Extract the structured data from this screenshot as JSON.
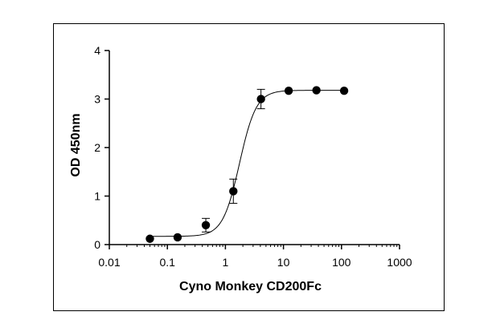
{
  "chart_data": {
    "type": "scatter",
    "title": "",
    "xlabel": "Cyno Monkey CD200Fc",
    "ylabel": "OD 450nm",
    "xscale": "log",
    "xlim": [
      0.01,
      1000
    ],
    "ylim": [
      0,
      4
    ],
    "x_ticks": [
      0.01,
      0.1,
      1,
      10,
      100,
      1000
    ],
    "x_tick_labels": [
      "0.01",
      "0.1",
      "1",
      "10",
      "100",
      "1000"
    ],
    "y_ticks": [
      0,
      1,
      2,
      3,
      4
    ],
    "y_tick_labels": [
      "0",
      "1",
      "2",
      "3",
      "4"
    ],
    "grid": false,
    "legend": "none",
    "series": [
      {
        "x": [
          0.05,
          0.15,
          0.46,
          1.37,
          4.1,
          12.3,
          37,
          111
        ],
        "y": [
          0.12,
          0.15,
          0.4,
          1.1,
          3.0,
          3.17,
          3.18,
          3.17
        ],
        "error": [
          0.0,
          0.0,
          0.14,
          0.25,
          0.2,
          0.0,
          0.0,
          0.0
        ],
        "marker": "filled-circle",
        "color": "#000000"
      }
    ],
    "fit_curve": {
      "model": "four-parameter logistic",
      "bottom": 0.17,
      "top": 3.18,
      "ec50": 1.75,
      "hill": 3.0,
      "color": "#000000"
    }
  }
}
